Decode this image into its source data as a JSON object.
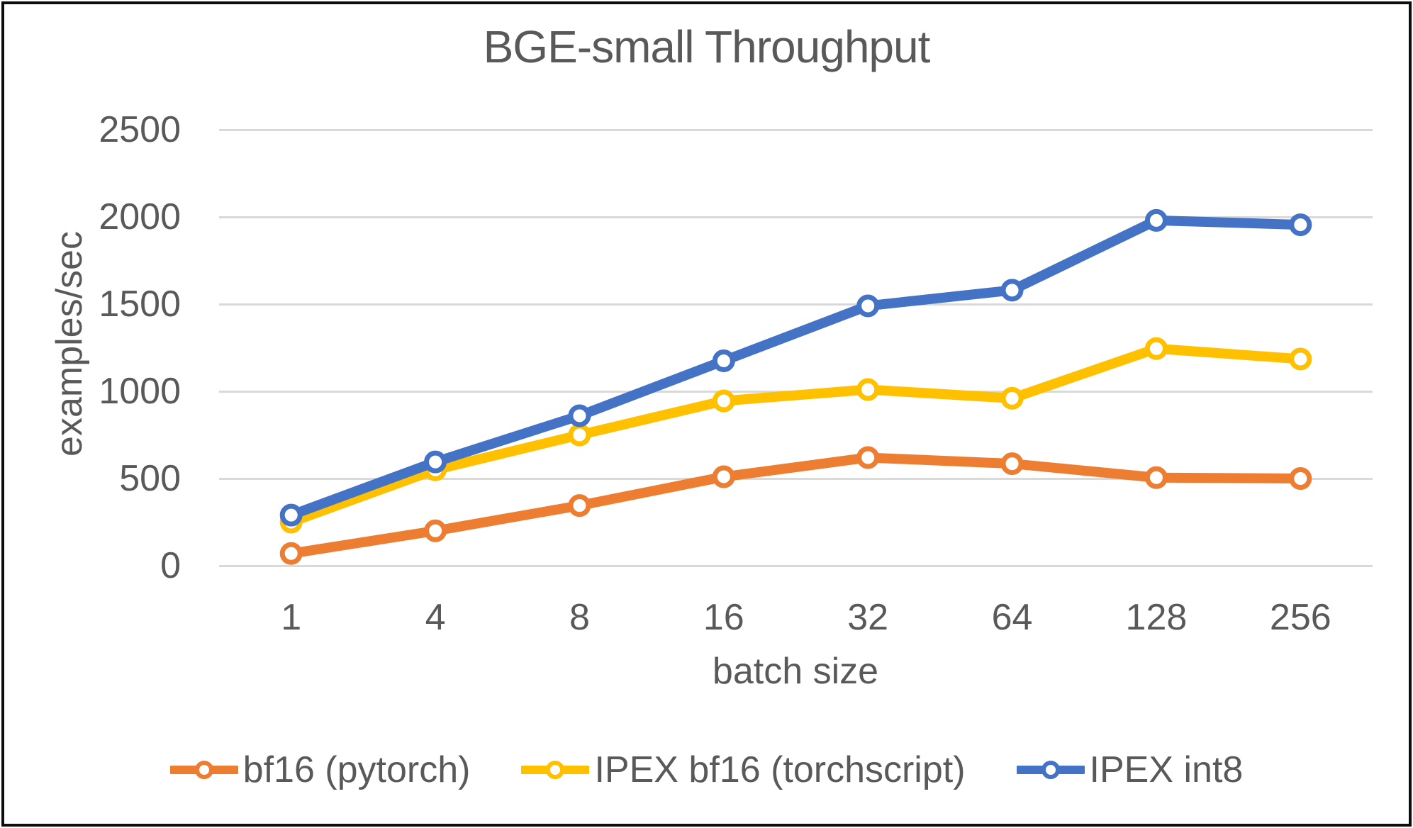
{
  "title": "BGE-small Throughput",
  "chart_data": {
    "type": "line",
    "title": "BGE-small Throughput",
    "xlabel": "batch size",
    "ylabel": "examples/sec",
    "categories": [
      "1",
      "4",
      "8",
      "16",
      "32",
      "64",
      "128",
      "256"
    ],
    "y_ticks": [
      0,
      500,
      1000,
      1500,
      2000,
      2500
    ],
    "ylim": [
      0,
      2500
    ],
    "grid": "horizontal-only",
    "legend_position": "bottom-center",
    "marker_style": "hollow-circle",
    "series": [
      {
        "name": "bf16 (pytorch)",
        "color": "#ED7D31",
        "values": [
          70,
          200,
          345,
          510,
          620,
          585,
          505,
          500
        ]
      },
      {
        "name": "IPEX bf16 (torchscript)",
        "color": "#FFC000",
        "values": [
          250,
          550,
          750,
          945,
          1010,
          960,
          1245,
          1185
        ]
      },
      {
        "name": "IPEX int8",
        "color": "#4472C4",
        "values": [
          290,
          595,
          860,
          1175,
          1490,
          1580,
          1980,
          1955
        ]
      }
    ],
    "colors": {
      "grid": "#D9D9D9",
      "text": "#595959",
      "frame": "#0D0D0D",
      "background": "#FFFFFF"
    }
  }
}
